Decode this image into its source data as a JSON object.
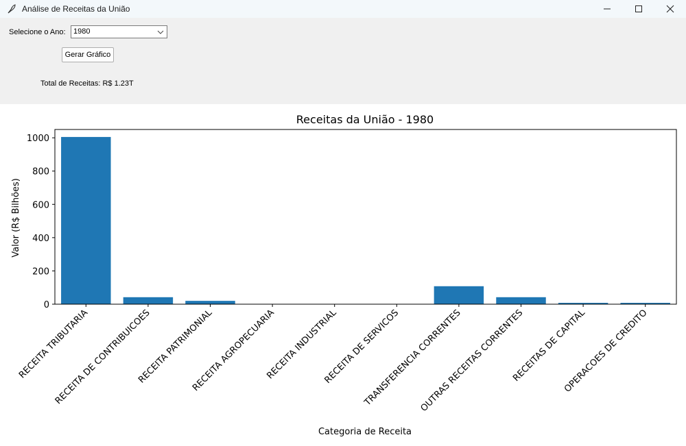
{
  "window": {
    "title": "Análise de Receitas da União",
    "icon": "feather-icon"
  },
  "controls": {
    "year_label": "Selecione o Ano:",
    "year_selected": "1980",
    "generate_button": "Gerar Gráfico",
    "total_label": "Total de Receitas: R$ 1.23T"
  },
  "colors": {
    "bar": "#1f77b4"
  },
  "chart_data": {
    "type": "bar",
    "title": "Receitas da União - 1980",
    "xlabel": "Categoria de Receita",
    "ylabel": "Valor (R$ Bilhões)",
    "ylim": [
      0,
      1050
    ],
    "yticks": [
      0,
      200,
      400,
      600,
      800,
      1000
    ],
    "grid": false,
    "categories": [
      "RECEITA TRIBUTARIA",
      "RECEITA DE CONTRIBUICOES",
      "RECEITA PATRIMONIAL",
      "RECEITA AGROPECUARIA",
      "RECEITA INDUSTRIAL",
      "RECEITA DE SERVICOS",
      "TRANSFERENCIA CORRENTES",
      "OUTRAS RECEITAS CORRENTES",
      "RECEITAS DE CAPITAL",
      "OPERACOES DE CREDITO"
    ],
    "values": [
      1005,
      42,
      20,
      0.3,
      0.3,
      0.3,
      108,
      42,
      8,
      8
    ]
  }
}
